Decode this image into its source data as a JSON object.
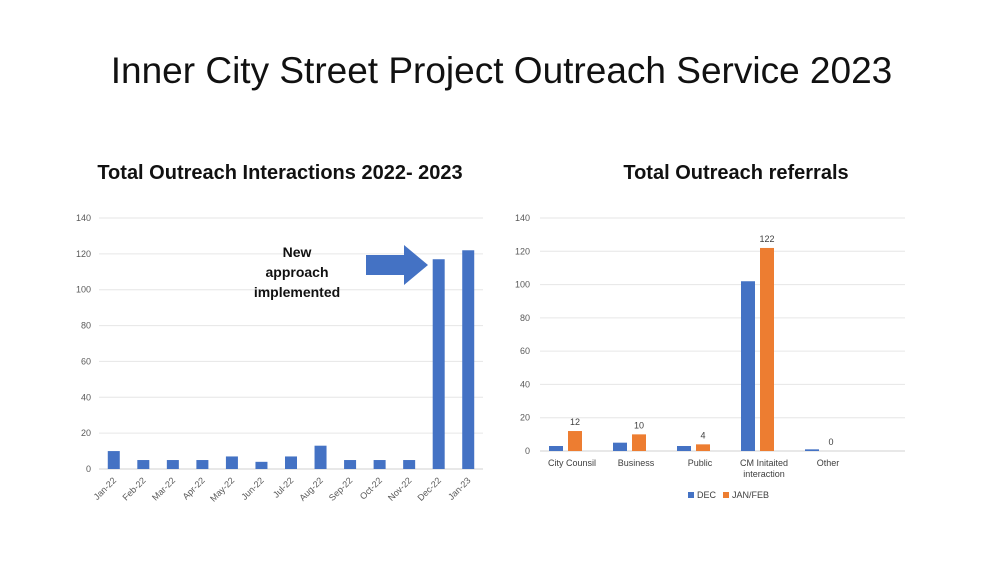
{
  "page": {
    "title": "Inner City Street Project Outreach Service 2023"
  },
  "chart_data": [
    {
      "type": "bar",
      "title": "Total Outreach Interactions 2022- 2023",
      "categories": [
        "Jan-22",
        "Feb-22",
        "Mar-22",
        "Apr-22",
        "May-22",
        "Jun-22",
        "Jul-22",
        "Aug-22",
        "Sep-22",
        "Oct-22",
        "Nov-22",
        "Dec-22",
        "Jan-23"
      ],
      "values": [
        10,
        5,
        5,
        5,
        7,
        4,
        7,
        13,
        5,
        5,
        5,
        117,
        122
      ],
      "ylim": [
        0,
        140
      ],
      "yticks": [
        0,
        20,
        40,
        60,
        80,
        100,
        120,
        140
      ],
      "grid": true,
      "color": "#4472C4",
      "annotation": [
        "New",
        "approach",
        "implemented"
      ]
    },
    {
      "type": "bar",
      "title": "Total Outreach referrals",
      "categories": [
        [
          "City Counsil"
        ],
        [
          "Business"
        ],
        [
          "Public"
        ],
        [
          "CM Initaited",
          "interaction"
        ],
        [
          "Other"
        ]
      ],
      "series": [
        {
          "name": "DEC",
          "values": [
            3,
            5,
            3,
            102,
            1
          ],
          "color": "#4472C4"
        },
        {
          "name": "JAN/FEB",
          "values": [
            12,
            10,
            4,
            122,
            0
          ],
          "color": "#ED7D31",
          "labels": [
            "12",
            "10",
            "4",
            "122",
            "0"
          ]
        }
      ],
      "ylim": [
        0,
        140
      ],
      "yticks": [
        0,
        20,
        40,
        60,
        80,
        100,
        120,
        140
      ],
      "grid": true,
      "legend": "bottom"
    }
  ]
}
